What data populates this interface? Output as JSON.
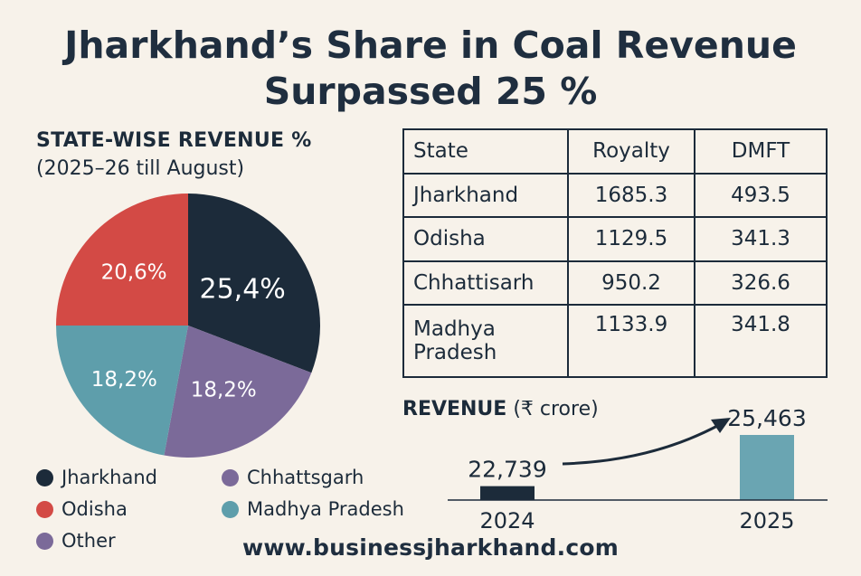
{
  "title_line1": "Jharkhand’s Share in Coal Revenue",
  "title_line2": "Surpassed 25 %",
  "pie_heading": "STATE-WISE REVENUE %",
  "pie_subheading": "(2025–26 till August)",
  "table": {
    "headers": [
      "State",
      "Royalty",
      "DMFT"
    ],
    "rows": [
      [
        "Jharkhand",
        "1685.3",
        "493.5"
      ],
      [
        "Odisha",
        "1129.5",
        "341.3"
      ],
      [
        "Chhattisarh",
        "950.2",
        "326.6"
      ],
      [
        "Madhya Pradesh",
        "1133.9",
        "341.8"
      ]
    ]
  },
  "revenue_heading_bold": "REVENUE",
  "revenue_heading_rest": "(₹ crore)",
  "footer": "www.businessjharkhand.com",
  "colors": {
    "jharkhand": "#1c2b3a",
    "odisha": "#d34a45",
    "chhattisgarh": "#7b6a99",
    "madhya_pradesh": "#5e9eab",
    "bar2024": "#1c2b3a",
    "bar2025": "#6aa5b2"
  },
  "chart_data": [
    {
      "type": "pie",
      "title": "STATE-WISE REVENUE %",
      "subtitle": "(2025–26 till August)",
      "slices": [
        {
          "label": "Jharkhand",
          "value": 25.4,
          "display": "25,4%",
          "color": "#1c2b3a"
        },
        {
          "label": "Other",
          "value": 18.2,
          "display": "18,2%",
          "color": "#7b6a99"
        },
        {
          "label": "Madhya Pradesh",
          "value": 18.2,
          "display": "18,2%",
          "color": "#5e9eab"
        },
        {
          "label": "Odisha",
          "value": 20.6,
          "display": "20,6%",
          "color": "#d34a45"
        }
      ],
      "legend": [
        {
          "label": "Jharkhand",
          "color": "#1c2b3a"
        },
        {
          "label": "Odisha",
          "color": "#d34a45"
        },
        {
          "label": "Other",
          "color": "#7b6a99"
        },
        {
          "label": "Chhattsgarh",
          "color": "#7b6a99"
        },
        {
          "label": "Madhya Pradesh",
          "color": "#5e9eab"
        }
      ]
    },
    {
      "type": "bar",
      "title": "REVENUE (₹ crore)",
      "categories": [
        "2024",
        "2025"
      ],
      "values": [
        22739,
        25463
      ],
      "value_labels": [
        "22,739",
        "25,463"
      ]
    }
  ]
}
